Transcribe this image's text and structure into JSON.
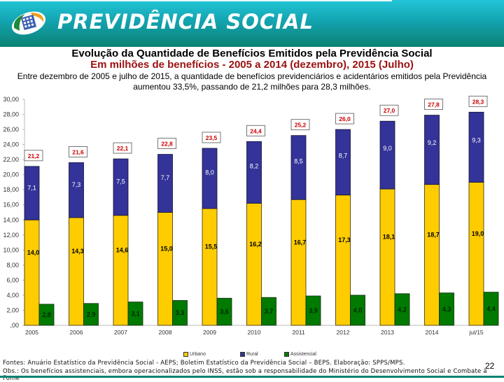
{
  "header": {
    "brand": "PREVIDÊNCIA SOCIAL",
    "logo_icon": "previdencia-logo-icon"
  },
  "title": "Evolução da Quantidade de Benefícios Emitidos pela Previdência Social",
  "subtitle": "Em milhões de benefícios - 2005 a 2014 (dezembro), 2015 (Julho)",
  "description": "Entre dezembro de 2005 e julho de 2015, a quantidade de benefícios previdenciários e acidentários emitidos pela Previdência aumentou 33,5%, passando de 21,2 milhões para 28,3 milhões.",
  "colors": {
    "urbano": "#ffcc00",
    "rural": "#333399",
    "assistencial": "#007a00",
    "total_label": "#cc0000",
    "header_top": "#22c6d8",
    "header_bottom": "#0b8273"
  },
  "chart_data": {
    "type": "bar",
    "title": "Evolução da Quantidade de Benefícios Emitidos pela Previdência Social",
    "subtitle": "Em milhões de benefícios - 2005 a 2014 (dezembro), 2015 (Julho)",
    "xlabel": "",
    "ylabel": "",
    "ylim": [
      0,
      30
    ],
    "yticks": [
      ",00",
      "2,00",
      "4,00",
      "6,00",
      "8,00",
      "10,00",
      "12,00",
      "14,00",
      "16,00",
      "18,00",
      "20,00",
      "22,00",
      "24,00",
      "26,00",
      "28,00",
      "30,00"
    ],
    "categories": [
      "2005",
      "2006",
      "2007",
      "2008",
      "2009",
      "2010",
      "2011",
      "2012",
      "2013",
      "2014",
      "jul/15"
    ],
    "series": [
      {
        "name": "Urbano",
        "stack": "previdenciario",
        "values": [
          14.0,
          14.3,
          14.6,
          15.0,
          15.5,
          16.2,
          16.7,
          17.3,
          18.1,
          18.7,
          19.0
        ],
        "labels": [
          "14,0",
          "14,3",
          "14,6",
          "15,0",
          "15,5",
          "16,2",
          "16,7",
          "17,3",
          "18,1",
          "18,7",
          "19,0"
        ]
      },
      {
        "name": "Rural",
        "stack": "previdenciario",
        "values": [
          7.1,
          7.3,
          7.5,
          7.7,
          8.0,
          8.2,
          8.5,
          8.7,
          9.0,
          9.2,
          9.3
        ],
        "labels": [
          "7,1",
          "7,3",
          "7,5",
          "7,7",
          "8,0",
          "8,2",
          "8,5",
          "8,7",
          "9,0",
          "9,2",
          "9,3"
        ]
      },
      {
        "name": "Assistencial",
        "stack": "assistencial",
        "values": [
          2.8,
          2.9,
          3.1,
          3.3,
          3.6,
          3.7,
          3.9,
          4.0,
          4.2,
          4.3,
          4.4
        ],
        "labels": [
          "2,8",
          "2,9",
          "3,1",
          "3,3",
          "3,6",
          "3,7",
          "3,9",
          "4,0",
          "4,2",
          "4,3",
          "4,4"
        ]
      }
    ],
    "totals": [
      21.2,
      21.6,
      22.1,
      22.8,
      23.5,
      24.4,
      25.2,
      26.0,
      27.0,
      27.8,
      28.3
    ],
    "total_labels": [
      "21,2",
      "21,6",
      "22,1",
      "22,8",
      "23,5",
      "24,4",
      "25,2",
      "26,0",
      "27,0",
      "27,8",
      "28,3"
    ],
    "legend": [
      "Urbano",
      "Rural",
      "Assistencial"
    ],
    "legend_position": "bottom-center",
    "grid": false
  },
  "footer": {
    "sources": "Fontes: Anuário Estatístico da Previdência Social - AEPS; Boletim Estatístico da Previdência Social – BEPS. Elaboração: SPPS/MPS.",
    "obs": "Obs.: Os benefícios assistenciais, embora operacionalizados pelo INSS, estão sob a responsabilidade do Ministério do Desenvolvimento Social e Combate à Fome",
    "page_number": "22"
  }
}
